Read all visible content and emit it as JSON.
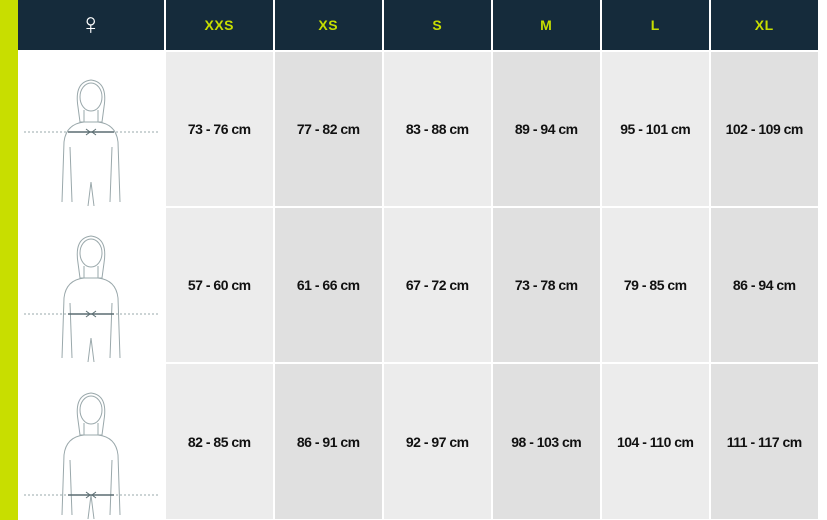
{
  "header": {
    "gender_icon": "female-symbol-icon",
    "gender_symbol": "♀",
    "sizes": [
      "XXS",
      "XS",
      "S",
      "M",
      "L",
      "XL"
    ]
  },
  "rows": [
    {
      "measure_icon": "chest-measurement-figure",
      "values": [
        "73 - 76 cm",
        "77 - 82 cm",
        "83 - 88 cm",
        "89 - 94 cm",
        "95 - 101 cm",
        "102 - 109 cm"
      ]
    },
    {
      "measure_icon": "waist-measurement-figure",
      "values": [
        "57 - 60 cm",
        "61 - 66 cm",
        "67 - 72 cm",
        "73 - 78 cm",
        "79 - 85 cm",
        "86 - 94 cm"
      ]
    },
    {
      "measure_icon": "hip-measurement-figure",
      "values": [
        "82 - 85 cm",
        "86 - 91 cm",
        "92 - 97 cm",
        "98 - 103 cm",
        "104 - 110 cm",
        "111 - 117 cm"
      ]
    }
  ],
  "colors": {
    "header_bg": "#152b3b",
    "accent": "#c8de00",
    "size_label": "#c6de00"
  }
}
